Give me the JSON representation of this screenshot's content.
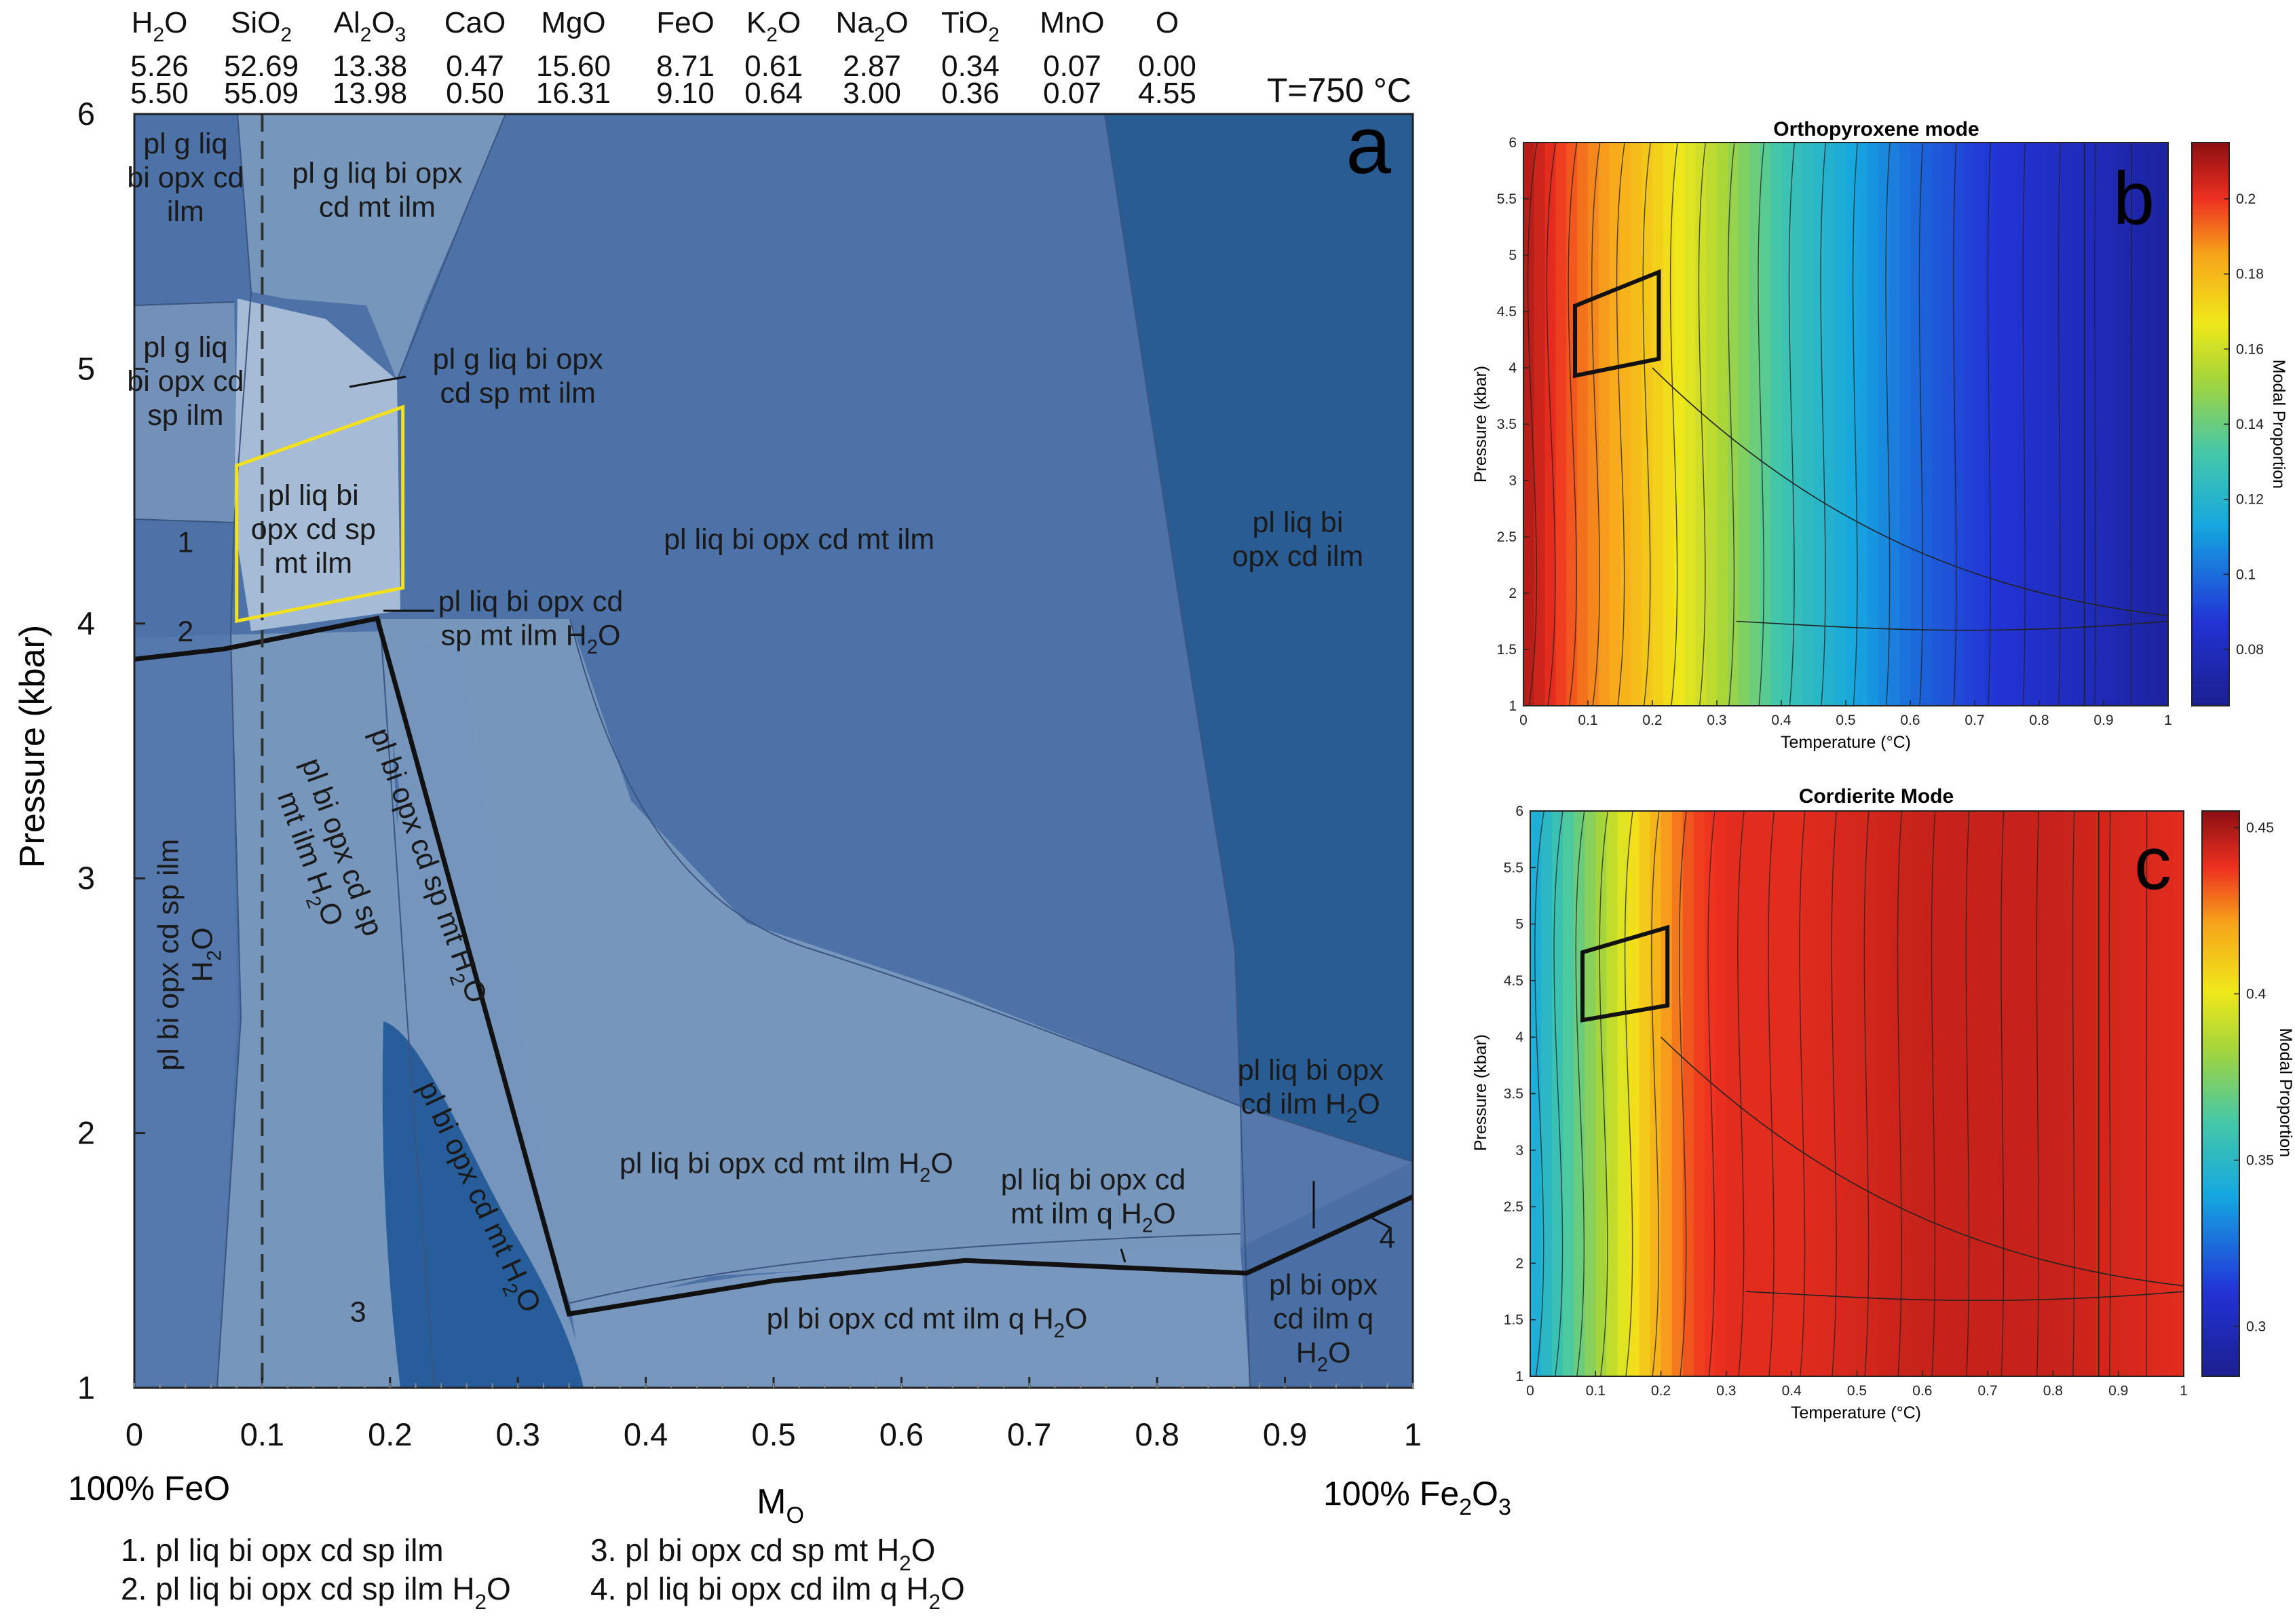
{
  "figure": {
    "composition": {
      "oxides": [
        "H2O",
        "SiO2",
        "Al2O3",
        "CaO",
        "MgO",
        "FeO",
        "K2O",
        "Na2O",
        "TiO2",
        "MnO",
        "O"
      ],
      "row1": [
        "5.26",
        "52.69",
        "13.38",
        "0.47",
        "15.60",
        "8.71",
        "0.61",
        "2.87",
        "0.34",
        "0.07",
        "0.00"
      ],
      "row2": [
        "5.50",
        "55.09",
        "13.98",
        "0.50",
        "16.31",
        "9.10",
        "0.64",
        "3.00",
        "0.36",
        "0.07",
        "4.55"
      ]
    },
    "temperature_label": "T=750 °C",
    "left_end_label": "100% FeO",
    "right_end_label": "100% Fe2O3",
    "footnotes": [
      "1. pl liq bi opx cd sp ilm",
      "2. pl liq bi opx cd sp ilm H2O",
      "3. pl bi opx cd sp mt H2O",
      "4. pl liq bi opx cd ilm q H2O"
    ]
  },
  "chart_data": [
    {
      "panel": "a",
      "type": "pseudosection",
      "xlabel": "MO",
      "ylabel": "Pressure (kbar)",
      "xlim": [
        0,
        1
      ],
      "ylim": [
        1,
        6
      ],
      "xticks": [
        "0",
        "0.1",
        "0.2",
        "0.3",
        "0.4",
        "0.5",
        "0.6",
        "0.7",
        "0.8",
        "0.9",
        "1"
      ],
      "yticks": [
        "1",
        "2",
        "3",
        "4",
        "5",
        "6"
      ],
      "fields": [
        {
          "label": "pl g liq bi opx cd ilm",
          "x": 0.04,
          "y": 5.75
        },
        {
          "label": "pl g liq bi opx cd mt ilm",
          "x": 0.19,
          "y": 5.7
        },
        {
          "label": "pl g liq bi opx cd sp ilm",
          "x": 0.04,
          "y": 4.95
        },
        {
          "label": "pl g liq bi opx cd sp mt ilm",
          "x": 0.3,
          "y": 4.97
        },
        {
          "label": "pl liq bi opx cd sp mt ilm",
          "x": 0.14,
          "y": 4.37
        },
        {
          "label": "pl liq bi opx cd mt ilm",
          "x": 0.52,
          "y": 4.33
        },
        {
          "label": "pl liq bi opx cd ilm",
          "x": 0.91,
          "y": 4.33
        },
        {
          "label": "pl liq bi opx cd sp mt ilm H2O",
          "x": 0.31,
          "y": 4.02
        },
        {
          "label": "pl bi opx cd sp ilm H2O",
          "x": 0.04,
          "y": 2.7
        },
        {
          "label": "pl bi opx cd sp mt ilm H2O",
          "x": 0.15,
          "y": 3.1
        },
        {
          "label": "pl bi opx cd sp mt H2O",
          "x": 0.23,
          "y": 3.05
        },
        {
          "label": "pl bi opx cd mt H2O",
          "x": 0.27,
          "y": 1.75
        },
        {
          "label": "pl liq bi opx cd mt ilm H2O",
          "x": 0.51,
          "y": 1.88
        },
        {
          "label": "pl liq bi opx cd mt ilm q H2O",
          "x": 0.75,
          "y": 1.75
        },
        {
          "label": "pl liq bi opx cd ilm H2O",
          "x": 0.92,
          "y": 2.18
        },
        {
          "label": "pl bi opx cd mt ilm q H2O",
          "x": 0.62,
          "y": 1.27
        },
        {
          "label": "pl bi opx cd ilm q H2O",
          "x": 0.93,
          "y": 1.27
        }
      ],
      "numbered_fields": [
        {
          "label": "1",
          "x": 0.04,
          "y": 4.32
        },
        {
          "label": "2",
          "x": 0.04,
          "y": 3.97
        },
        {
          "label": "3",
          "x": 0.175,
          "y": 1.3
        },
        {
          "label": "4",
          "x": 0.98,
          "y": 1.59
        }
      ],
      "reference_line_x": 0.1,
      "highlight_polygon": [
        [
          0.08,
          4.62
        ],
        [
          0.21,
          4.85
        ],
        [
          0.21,
          4.14
        ],
        [
          0.08,
          4.01
        ]
      ],
      "h2o_saturation_line": [
        [
          0,
          3.86
        ],
        [
          0.07,
          3.9
        ],
        [
          0.19,
          4.02
        ],
        [
          0.34,
          1.29
        ],
        [
          0.5,
          1.42
        ],
        [
          0.65,
          1.5
        ],
        [
          0.87,
          1.45
        ],
        [
          1,
          1.75
        ]
      ]
    },
    {
      "panel": "b",
      "type": "heatmap",
      "title": "Orthopyroxene mode",
      "xlabel": "Temperature (°C)",
      "ylabel": "Pressure (kbar)",
      "xlim": [
        0,
        1
      ],
      "ylim": [
        1,
        6
      ],
      "xticks": [
        "0",
        "0.1",
        "0.2",
        "0.3",
        "0.4",
        "0.5",
        "0.6",
        "0.7",
        "0.8",
        "0.9",
        "1"
      ],
      "yticks": [
        "1",
        "1.5",
        "2",
        "2.5",
        "3",
        "3.5",
        "4",
        "4.5",
        "5",
        "5.5",
        "6"
      ],
      "colorbar_label": "Modal Proportion",
      "colorbar_ticks": [
        "0.08",
        "0.1",
        "0.12",
        "0.14",
        "0.16",
        "0.18",
        "0.2"
      ],
      "colorbar_range": [
        0.065,
        0.215
      ],
      "highlight_box": [
        [
          0.08,
          4.55
        ],
        [
          0.21,
          4.85
        ],
        [
          0.21,
          4.08
        ],
        [
          0.08,
          3.93
        ]
      ],
      "columns": [
        {
          "x": 0.0,
          "v": 0.21
        },
        {
          "x": 0.1,
          "v": 0.19
        },
        {
          "x": 0.2,
          "v": 0.175
        },
        {
          "x": 0.3,
          "v": 0.155
        },
        {
          "x": 0.4,
          "v": 0.13
        },
        {
          "x": 0.5,
          "v": 0.115
        },
        {
          "x": 0.6,
          "v": 0.1
        },
        {
          "x": 0.7,
          "v": 0.09
        },
        {
          "x": 0.8,
          "v": 0.083
        },
        {
          "x": 0.9,
          "v": 0.077
        },
        {
          "x": 1.0,
          "v": 0.07
        }
      ]
    },
    {
      "panel": "c",
      "type": "heatmap",
      "title": "Cordierite Mode",
      "xlabel": "Temperature (°C)",
      "ylabel": "Pressure (kbar)",
      "xlim": [
        0,
        1
      ],
      "ylim": [
        1,
        6
      ],
      "xticks": [
        "0",
        "0.1",
        "0.2",
        "0.3",
        "0.4",
        "0.5",
        "0.6",
        "0.7",
        "0.8",
        "0.9",
        "1"
      ],
      "yticks": [
        "1",
        "1.5",
        "2",
        "2.5",
        "3",
        "3.5",
        "4",
        "4.5",
        "5",
        "5.5",
        "6"
      ],
      "colorbar_label": "Modal Proportion",
      "colorbar_ticks": [
        "0.3",
        "0.35",
        "0.4",
        "0.45"
      ],
      "colorbar_range": [
        0.285,
        0.455
      ],
      "highlight_box": [
        [
          0.08,
          4.75
        ],
        [
          0.21,
          4.97
        ],
        [
          0.21,
          4.28
        ],
        [
          0.08,
          4.15
        ]
      ],
      "columns": [
        {
          "x": 0.0,
          "v": 0.34
        },
        {
          "x": 0.05,
          "v": 0.36
        },
        {
          "x": 0.1,
          "v": 0.38
        },
        {
          "x": 0.15,
          "v": 0.4
        },
        {
          "x": 0.2,
          "v": 0.42
        },
        {
          "x": 0.25,
          "v": 0.435
        },
        {
          "x": 0.3,
          "v": 0.44
        },
        {
          "x": 0.4,
          "v": 0.44
        },
        {
          "x": 0.6,
          "v": 0.445
        },
        {
          "x": 0.8,
          "v": 0.445
        },
        {
          "x": 1.0,
          "v": 0.44
        }
      ]
    }
  ],
  "panel_letters": [
    "a",
    "b",
    "c"
  ]
}
